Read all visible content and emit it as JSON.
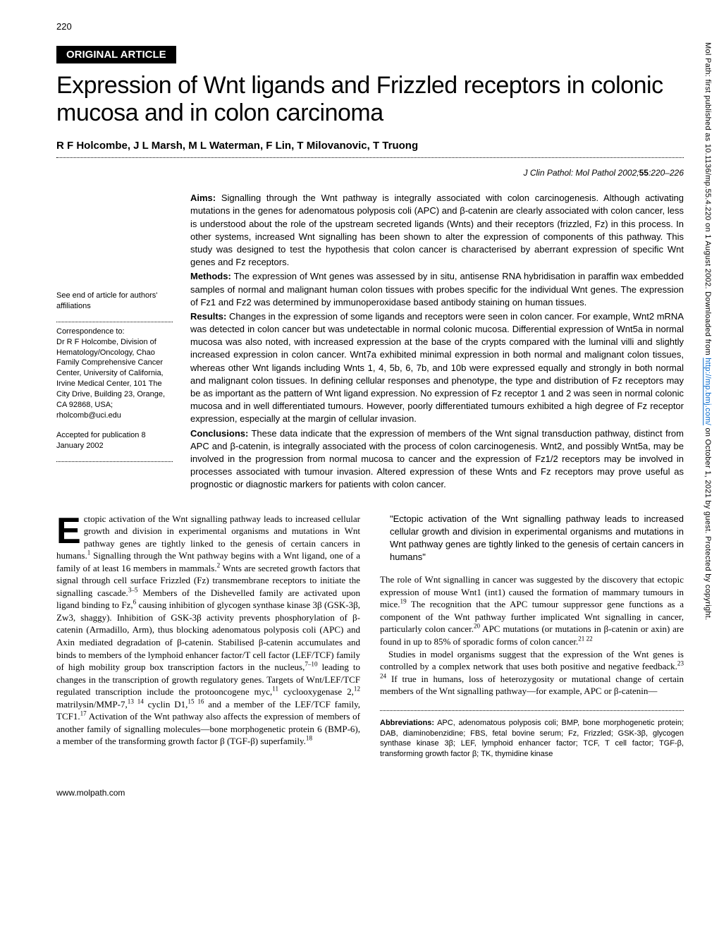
{
  "page_number": "220",
  "sidebar_note": {
    "prefix": "Mol Path: first published as 10.1136/mp.55.4.220 on 1 August 2002. Downloaded from ",
    "link": "http://mp.bmj.com/",
    "suffix": " on October 1, 2021 by guest. Protected by copyright."
  },
  "label": "ORIGINAL ARTICLE",
  "title": "Expression of Wnt ligands and Frizzled receptors in colonic mucosa and in colon carcinoma",
  "authors": "R F Holcombe, J L Marsh, M L Waterman, F Lin, T Milovanovic, T Truong",
  "citation": {
    "text": "J Clin Pathol: Mol Pathol 2002;",
    "vol": "55",
    "pages": ":220–226"
  },
  "left": {
    "affil_note": "See end of article for authors' affiliations",
    "corr_label": "Correspondence to:",
    "corr_text": "Dr R F Holcombe, Division of Hematology/Oncology, Chao Family Comprehensive Cancer Center, University of California, Irvine Medical Center, 101 The City Drive, Building 23, Orange, CA 92868, USA; rholcomb@uci.edu",
    "accepted": "Accepted for publication 8 January 2002"
  },
  "abstract": {
    "aims_label": "Aims:",
    "aims": " Signalling through the Wnt pathway is integrally associated with colon carcinogenesis. Although activating mutations in the genes for adenomatous polyposis coli (APC) and β-catenin are clearly associated with colon cancer, less is understood about the role of the upstream secreted ligands (Wnts) and their receptors (frizzled, Fz) in this process. In other systems, increased Wnt signalling has been shown to alter the expression of components of this pathway. This study was designed to test the hypothesis that colon cancer is characterised by aberrant expression of specific Wnt genes and Fz receptors.",
    "methods_label": "Methods:",
    "methods": " The expression of Wnt genes was assessed by in situ, antisense RNA hybridisation in paraffin wax embedded samples of normal and malignant human colon tissues with probes specific for the individual Wnt genes. The expression of Fz1 and Fz2 was determined by immunoperoxidase based antibody staining on human tissues.",
    "results_label": "Results:",
    "results": " Changes in the expression of some ligands and receptors were seen in colon cancer. For example, Wnt2 mRNA was detected in colon cancer but was undetectable in normal colonic mucosa. Differential expression of Wnt5a in normal mucosa was also noted, with increased expression at the base of the crypts compared with the luminal villi and slightly increased expression in colon cancer. Wnt7a exhibited minimal expression in both normal and malignant colon tissues, whereas other Wnt ligands including Wnts 1, 4, 5b, 6, 7b, and 10b were expressed equally and strongly in both normal and malignant colon tissues. In defining cellular responses and phenotype, the type and distribution of Fz receptors may be as important as the pattern of Wnt ligand expression. No expression of Fz receptor 1 and 2 was seen in normal colonic mucosa and in well differentiated tumours. However, poorly differentiated tumours exhibited a high degree of Fz receptor expression, especially at the margin of cellular invasion.",
    "conclusions_label": "Conclusions:",
    "conclusions": " These data indicate that the expression of members of the Wnt signal transduction pathway, distinct from APC and β-catenin, is integrally associated with the process of colon carcinogenesis. Wnt2, and possibly Wnt5a, may be involved in the progression from normal mucosa to cancer and the expression of Fz1/2 receptors may be involved in processes associated with tumour invasion. Altered expression of these Wnts and Fz receptors may prove useful as prognostic or diagnostic markers for patients with colon cancer."
  },
  "body": {
    "col1_first": "ctopic activation of the Wnt signalling pathway leads to increased cellular growth and division in experimental organisms and mutations in Wnt pathway genes are tightly linked to the genesis of certain cancers in humans.",
    "col1_p1_cont": " Signalling through the Wnt pathway begins with a Wnt ligand, one of a family of at least 16 members in mammals.",
    "col1_p1_cont2": " Wnts are secreted growth factors that signal through cell surface Frizzled (Fz) transmembrane receptors to initiate the signalling cascade.",
    "col1_p1_cont3": " Members of the Dishevelled family are activated upon ligand binding to Fz,",
    "col1_p1_cont4": " causing inhibition of glycogen synthase kinase 3β (GSK-3β, Zw3, shaggy). Inhibition of GSK-3β activity prevents phosphorylation of β-catenin (Armadillo, Arm), thus blocking adenomatous polyposis coli (APC) and Axin mediated degradation of β-catenin. Stabilised β-catenin accumulates and binds to members of the lymphoid enhancer factor/T cell factor (LEF/TCF) family of high mobility group box transcription factors in the nucleus,",
    "col1_p1_cont5": " leading to changes in the transcription of growth regulatory genes. Targets of Wnt/LEF/TCF regulated transcription include the protooncogene myc,",
    "col1_p1_cont6": " cyclooxygenase 2,",
    "col1_p1_cont7": " matrilysin/MMP-7,",
    "col1_p1_cont8": " cyclin D1,",
    "col1_p1_cont9": " and a member of the LEF/TCF family, TCF1.",
    "col1_p1_cont10": " Activation of the Wnt pathway also affects the expression of members of another family of signalling molecules—bone morphogenetic protein 6 (BMP-6), a member of the transforming growth factor β (TGF-β) superfamily.",
    "quote": "\"Ectopic activation of the Wnt signalling pathway leads to increased cellular growth and division in experimental organisms and mutations in Wnt pathway genes are tightly linked to the genesis of certain cancers in humans\"",
    "col2_p1": "The role of Wnt signalling in cancer was suggested by the discovery that ectopic expression of mouse Wnt1 (int1) caused the formation of mammary tumours in mice.",
    "col2_p1_cont": " The recognition that the APC tumour suppressor gene functions as a component of the Wnt pathway further implicated Wnt signalling in cancer, particularly colon cancer.",
    "col2_p1_cont2": " APC mutations (or mutations in β-catenin or axin) are found in up to 85% of sporadic forms of colon cancer.",
    "col2_p2": "Studies in model organisms suggest that the expression of the Wnt genes is controlled by a complex network that uses both positive and negative feedback.",
    "col2_p2_cont": " If true in humans, loss of heterozygosity or mutational change of certain members of the Wnt signalling pathway—for example, APC or β-catenin—"
  },
  "abbrev": {
    "label": "Abbreviations:",
    "text": " APC, adenomatous polyposis coli; BMP, bone morphogenetic protein; DAB, diaminobenzidine; FBS, fetal bovine serum; Fz, Frizzled; GSK-3β, glycogen synthase kinase 3β; LEF, lymphoid enhancer factor; TCF, T cell factor; TGF-β, transforming growth factor β; TK, thymidine kinase"
  },
  "footer": "www.molpath.com"
}
